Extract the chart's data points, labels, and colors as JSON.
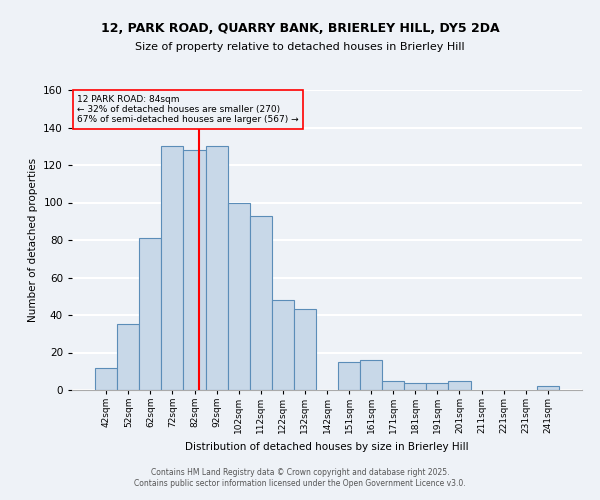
{
  "title_line1": "12, PARK ROAD, QUARRY BANK, BRIERLEY HILL, DY5 2DA",
  "title_line2": "Size of property relative to detached houses in Brierley Hill",
  "xlabel": "Distribution of detached houses by size in Brierley Hill",
  "ylabel": "Number of detached properties",
  "categories": [
    "42sqm",
    "52sqm",
    "62sqm",
    "72sqm",
    "82sqm",
    "92sqm",
    "102sqm",
    "112sqm",
    "122sqm",
    "132sqm",
    "142sqm",
    "151sqm",
    "161sqm",
    "171sqm",
    "181sqm",
    "191sqm",
    "201sqm",
    "211sqm",
    "221sqm",
    "231sqm",
    "241sqm"
  ],
  "values": [
    12,
    35,
    81,
    130,
    128,
    130,
    100,
    93,
    48,
    43,
    0,
    15,
    16,
    5,
    4,
    4,
    5,
    0,
    0,
    0,
    2
  ],
  "bar_color": "#c8d8e8",
  "bar_edge_color": "#5b8db8",
  "annotation_title": "12 PARK ROAD: 84sqm",
  "annotation_line2": "← 32% of detached houses are smaller (270)",
  "annotation_line3": "67% of semi-detached houses are larger (567) →",
  "ylim": [
    0,
    160
  ],
  "yticks": [
    0,
    20,
    40,
    60,
    80,
    100,
    120,
    140,
    160
  ],
  "bg_color": "#eef2f7",
  "grid_color": "#ffffff",
  "footer_line1": "Contains HM Land Registry data © Crown copyright and database right 2025.",
  "footer_line2": "Contains public sector information licensed under the Open Government Licence v3.0."
}
